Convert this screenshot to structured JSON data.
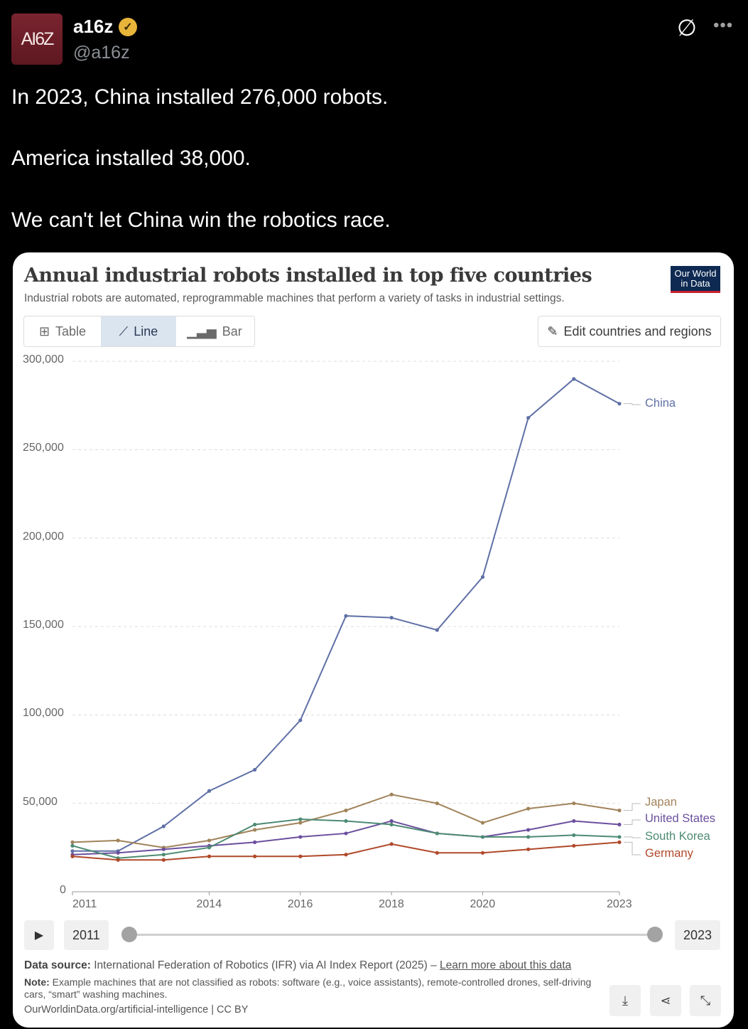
{
  "tweet": {
    "avatar_text": "AI6Z",
    "name": "a16z",
    "handle": "@a16z",
    "verified_color": "#e8b53a",
    "lines": [
      "In 2023, China installed 276,000 robots.",
      "America installed 38,000.",
      "We can't let China win the robotics race."
    ]
  },
  "card": {
    "title": "Annual industrial robots installed in top five countries",
    "subtitle": "Industrial robots are automated, reprogrammable machines that perform a variety of tasks in industrial settings.",
    "logo": "Our World in Data",
    "tabs": [
      {
        "label": "Table",
        "icon": "table-icon"
      },
      {
        "label": "Line",
        "icon": "line-chart-icon",
        "active": true
      },
      {
        "label": "Bar",
        "icon": "bar-chart-icon"
      }
    ],
    "edit_button": "Edit countries and regions",
    "timeline": {
      "start": "2011",
      "end": "2023"
    },
    "source_label": "Data source:",
    "source_text": "International Federation of Robotics (IFR) via AI Index Report (2025) – ",
    "source_link": "Learn more about this data",
    "note_label": "Note:",
    "note_text": "Example machines that are not classified as robots: software (e.g., voice assistants), remote-controlled drones, self-driving cars, “smart” washing machines.",
    "url": "OurWorldinData.org/artificial-intelligence | CC BY"
  },
  "chart_data": {
    "type": "line",
    "title": "Annual industrial robots installed in top five countries",
    "x": [
      2011,
      2012,
      2013,
      2014,
      2015,
      2016,
      2017,
      2018,
      2019,
      2020,
      2021,
      2022,
      2023
    ],
    "x_tick_labels": [
      "2011",
      "2014",
      "2016",
      "2018",
      "2020",
      "2023"
    ],
    "y_tick_labels": [
      "0",
      "50,000",
      "100,000",
      "150,000",
      "200,000",
      "250,000",
      "300,000"
    ],
    "ylim": [
      0,
      300000
    ],
    "grid": "horizontal dashed",
    "legend": "right, end-of-line labels",
    "series": [
      {
        "name": "China",
        "color": "#5f70a6",
        "values": [
          23000,
          23000,
          37000,
          57000,
          69000,
          97000,
          156000,
          155000,
          148000,
          178000,
          268000,
          290000,
          276000
        ]
      },
      {
        "name": "Japan",
        "color": "#a1835a",
        "values": [
          28000,
          29000,
          25000,
          29000,
          35000,
          39000,
          46000,
          55000,
          50000,
          39000,
          47000,
          50000,
          46000
        ]
      },
      {
        "name": "United States",
        "color": "#6b4f9e",
        "values": [
          21000,
          22000,
          24000,
          26000,
          28000,
          31000,
          33000,
          40000,
          33000,
          31000,
          35000,
          40000,
          38000
        ]
      },
      {
        "name": "South Korea",
        "color": "#4d8b73",
        "values": [
          26000,
          19000,
          21000,
          25000,
          38000,
          41000,
          40000,
          38000,
          33000,
          31000,
          31000,
          32000,
          31000
        ]
      },
      {
        "name": "Germany",
        "color": "#b0492a",
        "values": [
          20000,
          18000,
          18000,
          20000,
          20000,
          20000,
          21000,
          27000,
          22000,
          22000,
          24000,
          26000,
          28000
        ]
      }
    ]
  }
}
